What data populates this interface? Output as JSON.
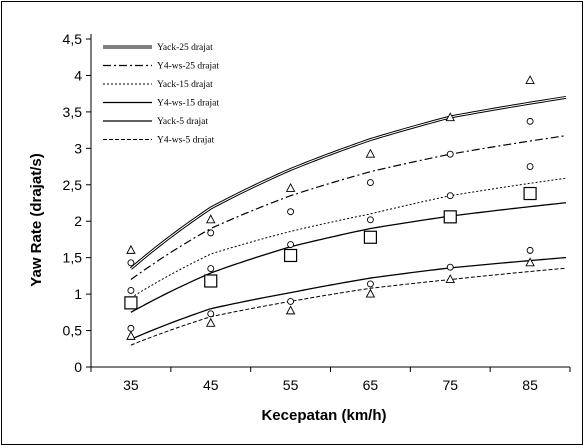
{
  "chart_data": {
    "type": "line",
    "xlabel": "Kecepatan (km/h)",
    "ylabel": "Yaw Rate (drajat/s)",
    "categories": [
      "35",
      "45",
      "55",
      "65",
      "75",
      "85"
    ],
    "x": [
      35,
      45,
      55,
      65,
      75,
      85
    ],
    "xlim": [
      30,
      90
    ],
    "ylim": [
      0,
      4.5
    ],
    "yticks": [
      "0",
      "0,5",
      "1",
      "1,5",
      "2",
      "2,5",
      "3",
      "3,5",
      "4",
      "4,5"
    ],
    "grid": false,
    "legend_position": "top-left",
    "series": [
      {
        "name": "Yack-25 drajat",
        "kind": "curve",
        "style": "double",
        "values": [
          1.35,
          2.18,
          2.71,
          3.12,
          3.43,
          3.62
        ]
      },
      {
        "name": "Y4-ws-25 drajat",
        "kind": "curve",
        "style": "dashdot",
        "values": [
          1.2,
          1.9,
          2.35,
          2.68,
          2.92,
          3.1
        ]
      },
      {
        "name": "Yack-15 drajat",
        "kind": "curve",
        "style": "dotted",
        "values": [
          0.95,
          1.55,
          1.86,
          2.1,
          2.35,
          2.52
        ]
      },
      {
        "name": "Y4-ws-15 drajat",
        "kind": "curve",
        "style": "solid",
        "values": [
          0.75,
          1.29,
          1.65,
          1.9,
          2.07,
          2.2
        ]
      },
      {
        "name": "Yack-5 drajat",
        "kind": "curve",
        "style": "solid",
        "values": [
          0.38,
          0.8,
          1.02,
          1.22,
          1.36,
          1.46
        ]
      },
      {
        "name": "Y4-ws-5 drajat",
        "kind": "curve",
        "style": "dashed",
        "values": [
          0.3,
          0.69,
          0.9,
          1.08,
          1.2,
          1.31
        ]
      },
      {
        "name": "",
        "kind": "markers",
        "marker": "triangle",
        "values": [
          1.6,
          2.02,
          2.45,
          2.92,
          3.42,
          3.93
        ]
      },
      {
        "name": "",
        "kind": "markers",
        "marker": "circle",
        "values": [
          1.43,
          1.84,
          2.13,
          2.53,
          2.92,
          3.37
        ]
      },
      {
        "name": "",
        "kind": "markers",
        "marker": "circle",
        "values": [
          1.05,
          1.35,
          1.68,
          2.02,
          2.35,
          2.75
        ]
      },
      {
        "name": "",
        "kind": "markers",
        "marker": "square",
        "values": [
          0.88,
          1.18,
          1.53,
          1.78,
          2.06,
          2.38
        ]
      },
      {
        "name": "",
        "kind": "markers",
        "marker": "circle",
        "values": [
          0.53,
          0.73,
          0.9,
          1.14,
          1.37,
          1.6
        ]
      },
      {
        "name": "",
        "kind": "markers",
        "marker": "triangle",
        "values": [
          0.42,
          0.6,
          0.77,
          1.0,
          1.2,
          1.43
        ]
      }
    ]
  }
}
